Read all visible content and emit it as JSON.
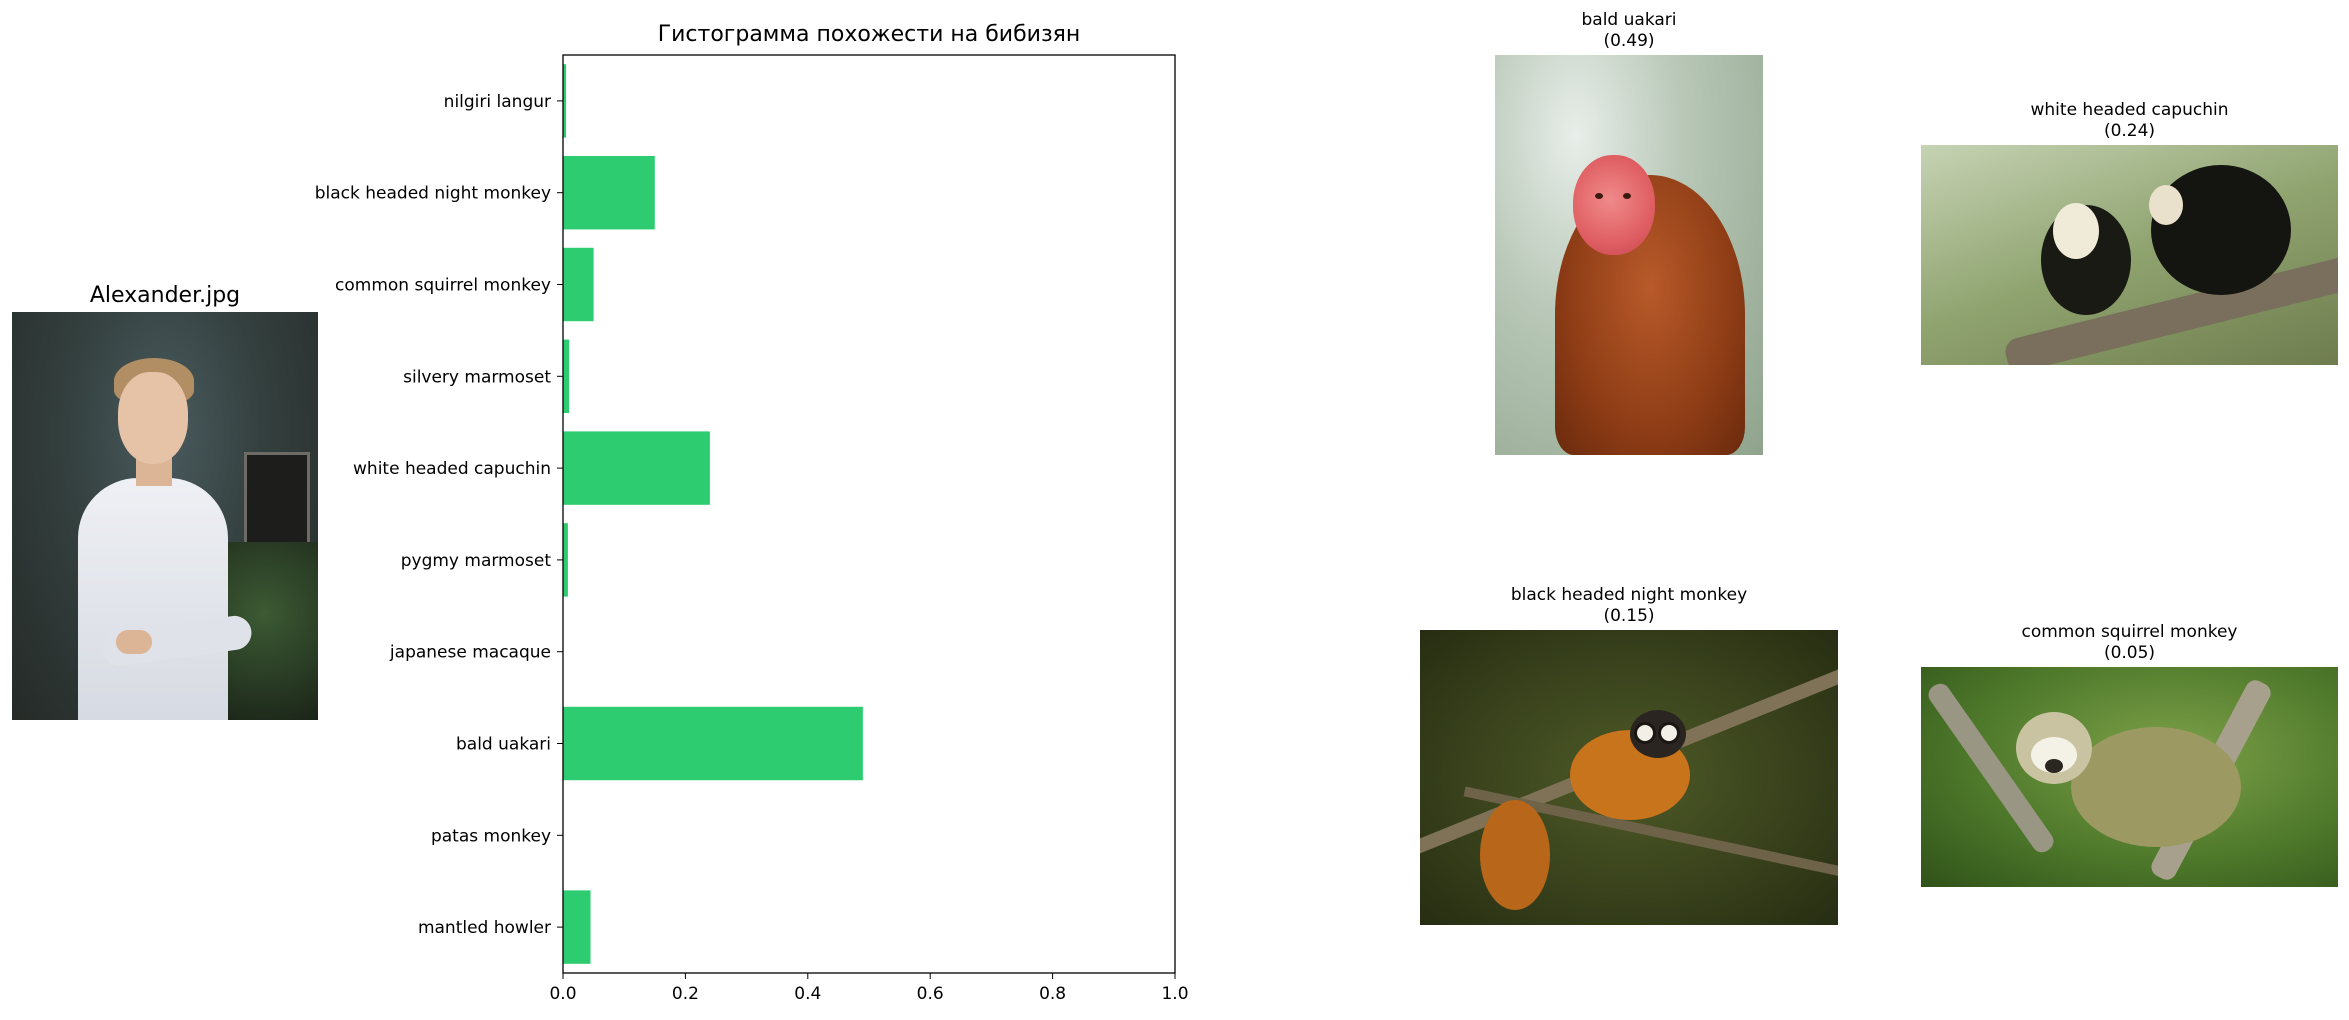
{
  "person": {
    "title": "Alexander.jpg"
  },
  "chart_data": {
    "type": "bar",
    "orientation": "horizontal",
    "title": "Гистограмма похожести на бибизян",
    "categories": [
      "nilgiri langur",
      "black headed night monkey",
      "common squirrel monkey",
      "silvery marmoset",
      "white headed capuchin",
      "pygmy marmoset",
      "japanese macaque",
      "bald uakari",
      "patas monkey",
      "mantled howler"
    ],
    "values": [
      0.005,
      0.15,
      0.05,
      0.01,
      0.24,
      0.008,
      0.0,
      0.49,
      0.0,
      0.045
    ],
    "xlim": [
      0,
      1
    ],
    "xticks": [
      "0.0",
      "0.2",
      "0.4",
      "0.6",
      "0.8",
      "1.0"
    ],
    "grid": false,
    "color": "#2ecc71"
  },
  "matches": [
    {
      "name": "bald uakari",
      "score": "(0.49)"
    },
    {
      "name": "white headed capuchin",
      "score": "(0.24)"
    },
    {
      "name": "black headed night monkey",
      "score": "(0.15)"
    },
    {
      "name": "common squirrel monkey",
      "score": "(0.05)"
    }
  ]
}
